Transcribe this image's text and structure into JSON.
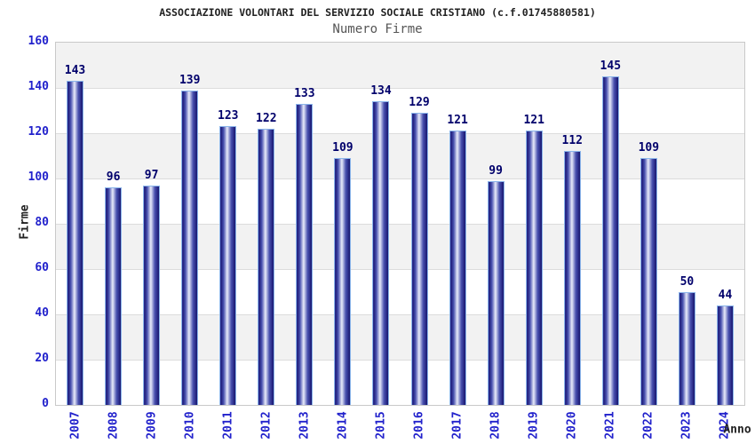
{
  "header": {
    "title": "ASSOCIAZIONE VOLONTARI DEL SERVIZIO SOCIALE CRISTIANO (c.f.01745880581)",
    "subtitle": "Numero Firme"
  },
  "chart_data": {
    "type": "bar",
    "title": "ASSOCIAZIONE VOLONTARI DEL SERVIZIO SOCIALE CRISTIANO (c.f.01745880581)",
    "subtitle": "Numero Firme",
    "categories": [
      "2007",
      "2008",
      "2009",
      "2010",
      "2011",
      "2012",
      "2013",
      "2014",
      "2015",
      "2016",
      "2017",
      "2018",
      "2019",
      "2020",
      "2021",
      "2022",
      "2023",
      "2024"
    ],
    "values": [
      143,
      96,
      97,
      139,
      123,
      122,
      133,
      109,
      134,
      129,
      121,
      99,
      121,
      112,
      145,
      109,
      50,
      44
    ],
    "xlabel": "Anno",
    "ylabel": "Firme",
    "ylim": [
      0,
      160
    ],
    "ytick_step": 20,
    "yticks": [
      0,
      20,
      40,
      60,
      80,
      100,
      120,
      140,
      160
    ],
    "grid": "alternating horizontal bands every 20 units with light gray gridlines",
    "legend": false,
    "value_labels": true
  },
  "colors": {
    "axis_blue": "#2222cc",
    "value_navy": "#00006b",
    "title_color": "#222222",
    "subtitle_color": "#555555",
    "band_gray": "#f2f2f2",
    "grid_line": "#dcdcdc",
    "plot_border": "#c9c9c9",
    "bar_border": "#8bb5ea",
    "bar_dark": "#2a2a92",
    "bar_dark2": "#23237f",
    "bar_darkest": "#1a1a70",
    "bar_mid": "#4a52b0",
    "bar_light": "#e8ebfa"
  }
}
